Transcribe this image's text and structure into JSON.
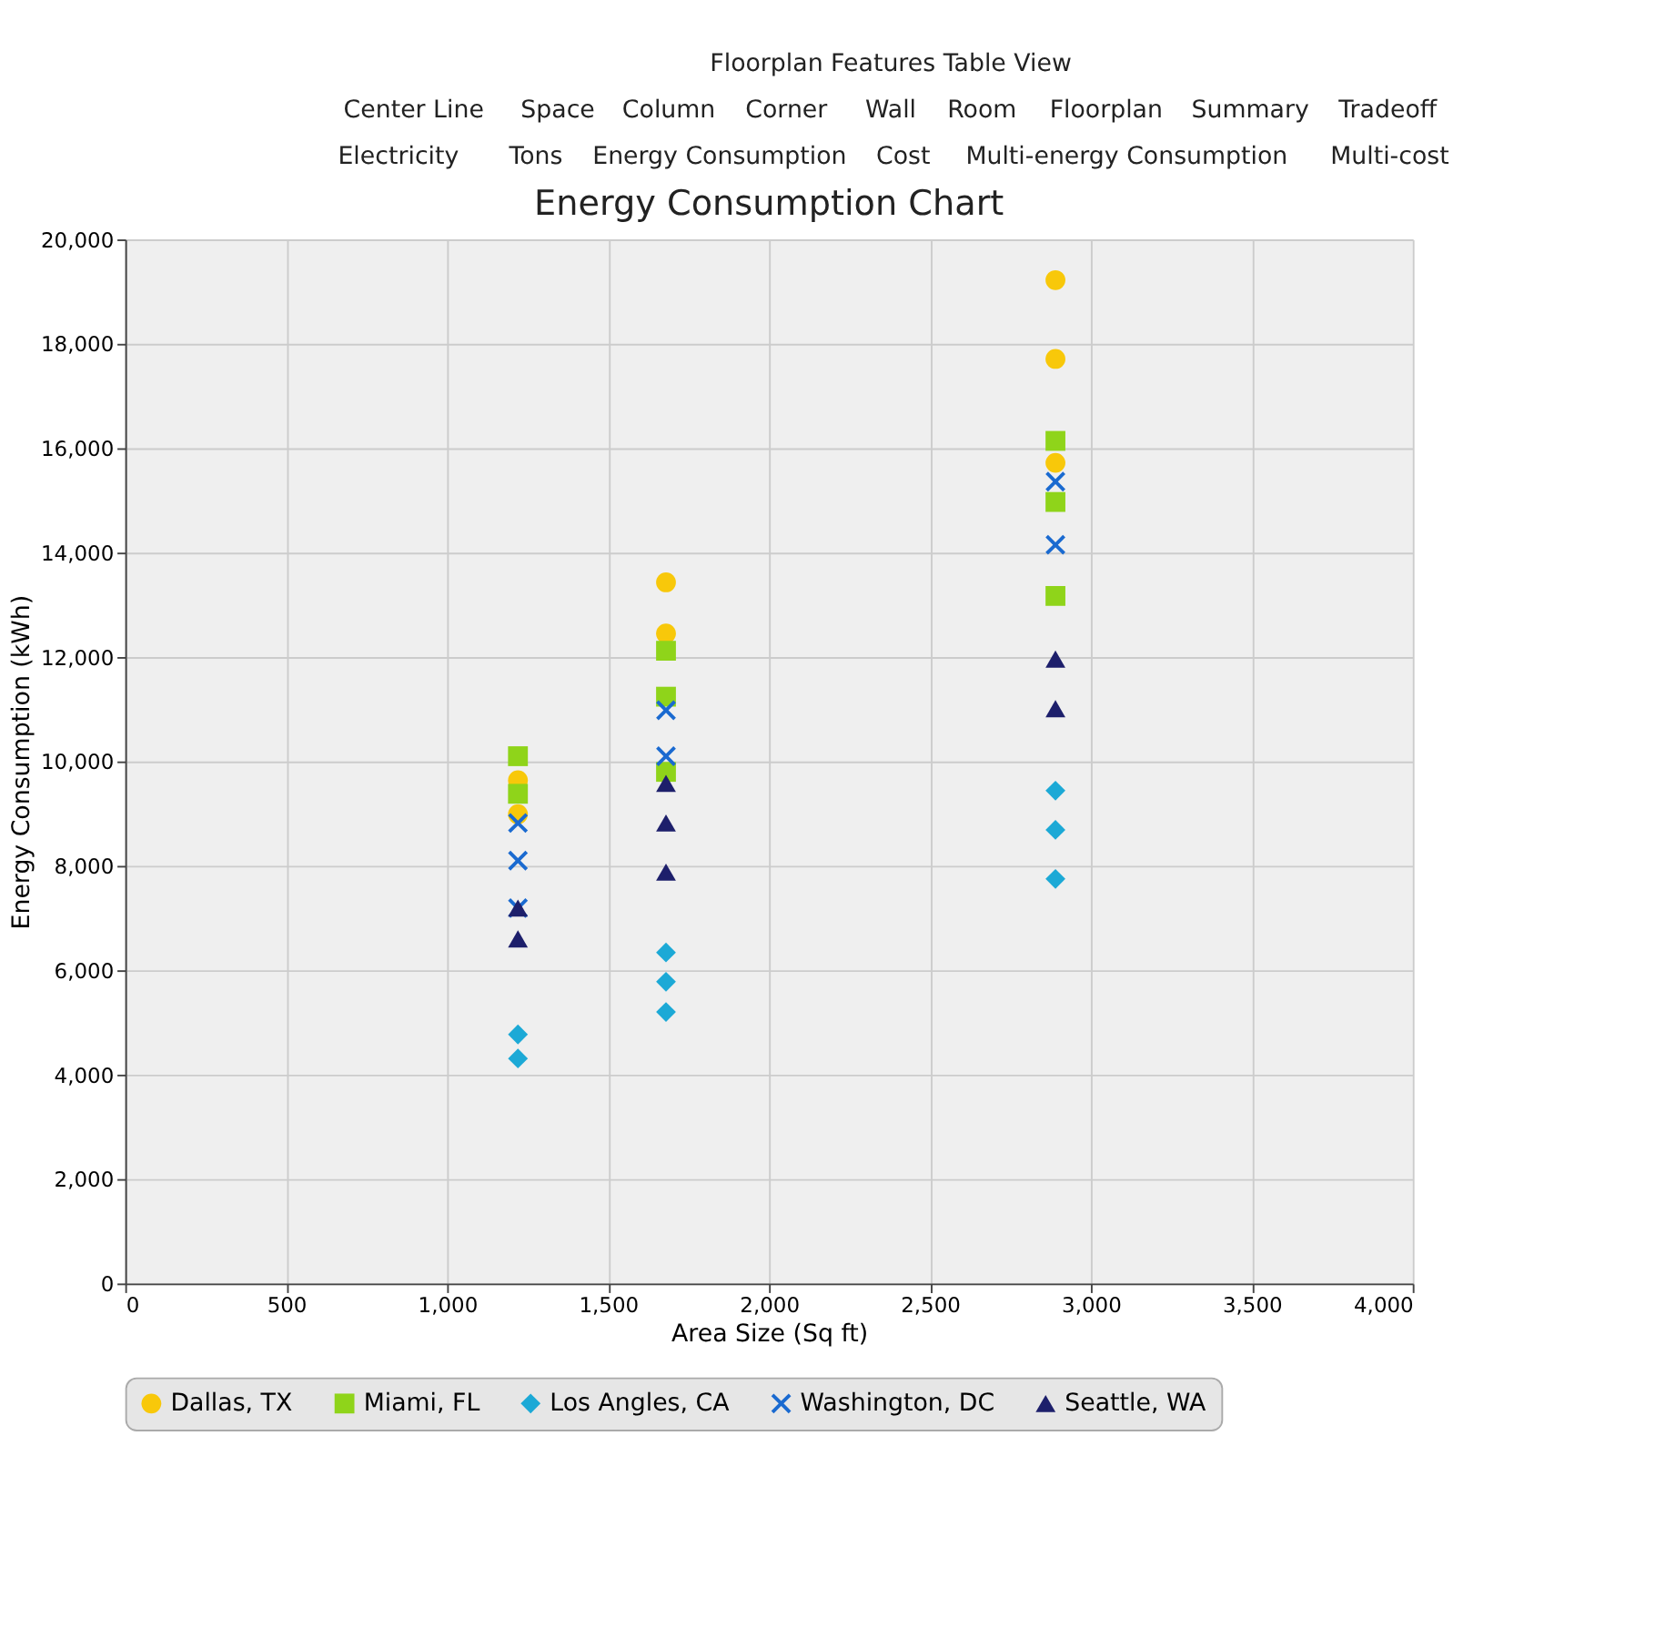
{
  "chart_data": {
    "type": "scatter",
    "title": "Energy Consumption Chart",
    "xlabel": "Area Size (Sq ft)",
    "ylabel": "Energy Consumption (kWh)",
    "annotations": [
      "Floorplan Features Table View",
      "Center Line",
      "Space",
      "Column",
      "Corner",
      "Wall",
      "Room",
      "Floorplan",
      "Summary",
      "Tradeoff",
      "Electricity",
      "Tons",
      "Energy Consumption",
      "Cost",
      "Multi-energy Consumption",
      "Multi-cost"
    ],
    "xlim": [
      0,
      4000
    ],
    "xticks": [
      0,
      500,
      {
        "value": 1000,
        "label": "1,000"
      },
      {
        "value": 1500,
        "label": "1,500"
      },
      {
        "value": 2000,
        "label": "2,000"
      },
      {
        "value": 2500,
        "label": "2,500"
      },
      {
        "value": 3000,
        "label": "3,000"
      },
      {
        "value": 3500,
        "label": "3,500"
      },
      {
        "value": 4000,
        "label": "4,000"
      }
    ],
    "ylim": [
      0,
      20000
    ],
    "yticks": [
      0,
      {
        "value": 2000,
        "label": "2,000"
      },
      {
        "value": 4000,
        "label": "4,000"
      },
      {
        "value": 6000,
        "label": "6,000"
      },
      {
        "value": 8000,
        "label": "8,000"
      },
      {
        "value": 10000,
        "label": "10,000"
      },
      {
        "value": 12000,
        "label": "12,000"
      },
      {
        "value": 14000,
        "label": "14,000"
      },
      {
        "value": 16000,
        "label": "16,000"
      },
      {
        "value": 18000,
        "label": "18,000"
      },
      {
        "value": 20000,
        "label": "20,000"
      }
    ],
    "grid": true,
    "legend": "bottom",
    "series": [
      {
        "name": "Dallas, TX",
        "color": "#f8c80a",
        "marker": "circle",
        "x": [
          1220,
          1220,
          1680,
          1680,
          2890,
          2890,
          2890
        ],
        "values": [
          9640,
          8990,
          13430,
          12450,
          19220,
          17710,
          15720
        ]
      },
      {
        "name": "Miami, FL",
        "color": "#8fd41a",
        "marker": "square",
        "x": [
          1220,
          1220,
          1680,
          1680,
          1680,
          2890,
          2890,
          2890
        ],
        "values": [
          10100,
          9380,
          12120,
          11240,
          9800,
          16140,
          14970,
          13170
        ]
      },
      {
        "name": "Los Angles, CA",
        "color": "#1ca9d6",
        "marker": "diamond",
        "x": [
          1220,
          1220,
          1680,
          1680,
          1680,
          2890,
          2890,
          2890
        ],
        "values": [
          4770,
          4310,
          6340,
          5780,
          5200,
          9440,
          8690,
          7750
        ]
      },
      {
        "name": "Washington, DC",
        "color": "#1a6ad0",
        "marker": "cross",
        "x": [
          1220,
          1220,
          1220,
          1680,
          1680,
          2890,
          2890
        ],
        "values": [
          8820,
          8100,
          7190,
          10980,
          10100,
          15360,
          14150
        ]
      },
      {
        "name": "Seattle, WA",
        "color": "#1d1f6b",
        "marker": "triangle",
        "x": [
          1220,
          1220,
          1680,
          1680,
          1680,
          2890,
          2890
        ],
        "values": [
          7190,
          6600,
          9580,
          8820,
          7880,
          11960,
          11010
        ]
      }
    ]
  }
}
